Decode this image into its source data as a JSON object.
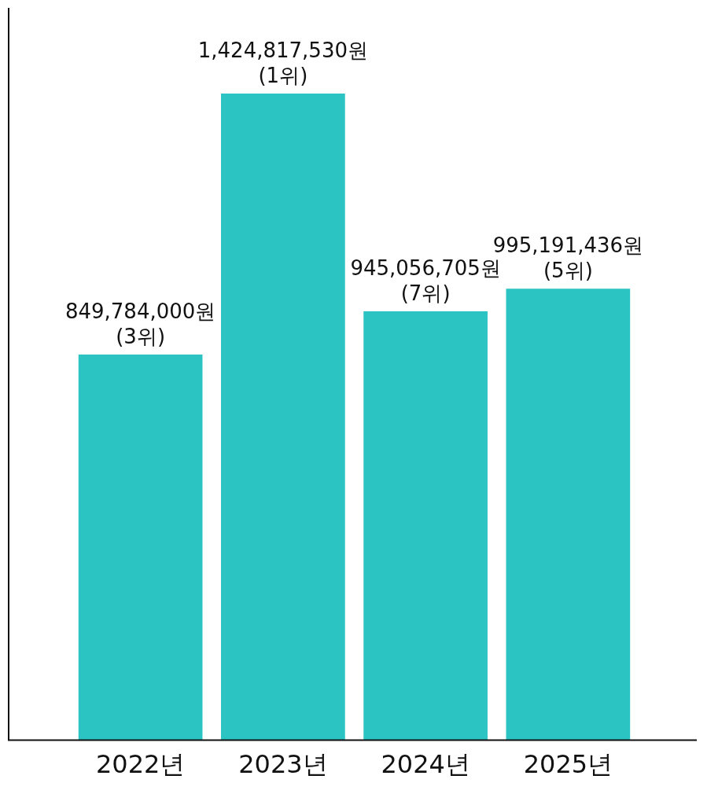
{
  "chart_data": {
    "type": "bar",
    "categories": [
      "2022년",
      "2023년",
      "2024년",
      "2025년"
    ],
    "values": [
      849784000,
      1424817530,
      945056705,
      995191436
    ],
    "value_labels": [
      "849,784,000원\n(3위)",
      "1,424,817,530원\n(1위)",
      "945,056,705원\n(7위)",
      "995,191,436원\n(5위)"
    ],
    "color": "#2cc3c3",
    "grid": false,
    "legend": false,
    "tick_labels": "x"
  }
}
